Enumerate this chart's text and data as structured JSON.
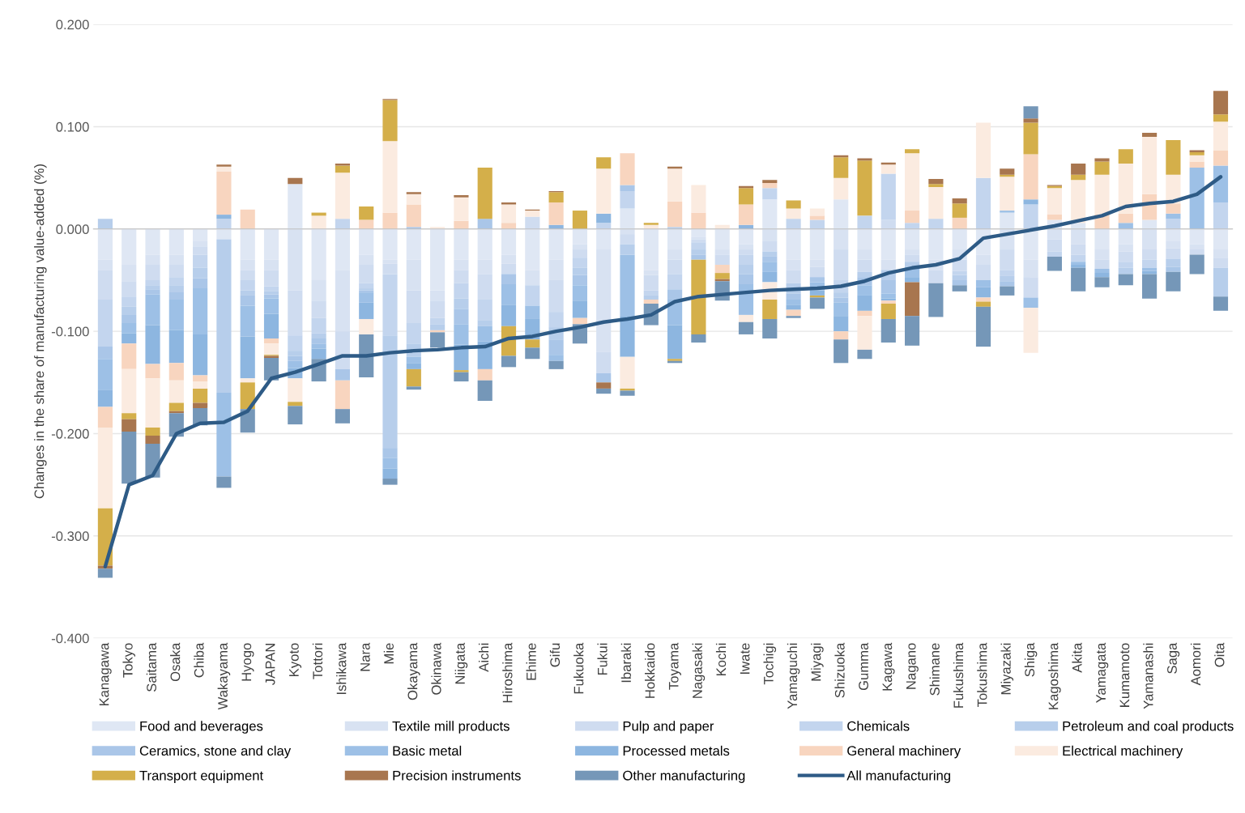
{
  "chart_data": {
    "type": "bar",
    "stacked": true,
    "ylabel": "Changes in the share of manufacturing value-added (%)",
    "categories": [
      "Kanagawa",
      "Tokyo",
      "Saitama",
      "Osaka",
      "Chiba",
      "Wakayama",
      "Hyogo",
      "JAPAN",
      "Kyoto",
      "Tottori",
      "Ishikawa",
      "Nara",
      "Mie",
      "Okayama",
      "Okinawa",
      "Niigata",
      "Aichi",
      "Hiroshima",
      "Ehime",
      "Gifu",
      "Fukuoka",
      "Fukui",
      "Ibaraki",
      "Hokkaido",
      "Toyama",
      "Nagasaki",
      "Kochi",
      "Iwate",
      "Tochigi",
      "Yamaguchi",
      "Miyagi",
      "Shizuoka",
      "Gumma",
      "Kagawa",
      "Nagano",
      "Shimane",
      "Fukushima",
      "Tokushima",
      "Miyazaki",
      "Shiga",
      "Kagoshima",
      "Akita",
      "Yamagata",
      "Kumamoto",
      "Yamanashi",
      "Saga",
      "Aomori",
      "Oita"
    ],
    "ylim": [
      -0.4,
      0.2
    ],
    "yticks": [
      {
        "value": -0.4,
        "label": "-0.400"
      },
      {
        "value": -0.3,
        "label": "-0.300"
      },
      {
        "value": -0.2,
        "label": "-0.200"
      },
      {
        "value": -0.1,
        "label": "-0.100"
      },
      {
        "value": 0,
        "label": "0.000"
      },
      {
        "value": 0.1,
        "label": "0.100"
      },
      {
        "value": 0.2,
        "label": "0.200"
      }
    ],
    "grid": "y",
    "legend": "bottom",
    "series": [
      {
        "name": "Food and beverages",
        "color": "#dfe7f4",
        "values": [
          -0.03,
          -0.035,
          -0.025,
          -0.025,
          -0.012,
          -0.01,
          -0.03,
          -0.03,
          0.044,
          -0.05,
          -0.04,
          -0.025,
          -0.03,
          -0.03,
          -0.06,
          -0.03,
          -0.03,
          -0.025,
          -0.04,
          -0.03,
          -0.015,
          -0.02,
          0.02,
          -0.04,
          -0.02,
          -0.008,
          -0.02,
          -0.015,
          0.029,
          -0.03,
          -0.03,
          0.029,
          -0.02,
          -0.03,
          -0.02,
          -0.03,
          -0.02,
          -0.025,
          0.016,
          -0.03,
          0.009,
          0.006,
          -0.02,
          -0.015,
          0.009,
          -0.012,
          -0.015,
          -0.02
        ]
      },
      {
        "name": "Textile mill products",
        "color": "#d8e2f2",
        "values": [
          -0.01,
          -0.016,
          -0.01,
          -0.01,
          -0.005,
          0,
          -0.01,
          -0.01,
          -0.06,
          -0.02,
          -0.06,
          -0.01,
          -0.004,
          -0.03,
          -0.01,
          -0.01,
          -0.014,
          -0.009,
          -0.015,
          -0.02,
          -0.005,
          -0.1,
          -0.005,
          -0.005,
          -0.01,
          -0.002,
          -0.005,
          -0.005,
          -0.012,
          -0.01,
          -0.007,
          -0.02,
          -0.01,
          -0.01,
          -0.005,
          -0.01,
          -0.01,
          -0.01,
          -0.02,
          -0.017,
          -0.01,
          -0.015,
          -0.01,
          -0.007,
          -0.02,
          -0.007,
          -0.005,
          -0.008
        ]
      },
      {
        "name": "Pulp and paper",
        "color": "#cfdcf0",
        "values": [
          -0.029,
          -0.015,
          -0.015,
          -0.012,
          -0.008,
          0,
          -0.01,
          -0.016,
          -0.044,
          -0.017,
          -0.037,
          -0.018,
          -0.01,
          -0.032,
          -0.017,
          -0.013,
          -0.025,
          -0.01,
          0.012,
          -0.031,
          -0.008,
          -0.021,
          -0.01,
          -0.015,
          -0.014,
          -0.003,
          -0.01,
          -0.005,
          -0.01,
          -0.013,
          -0.01,
          -0.03,
          -0.012,
          0.009,
          -0.007,
          -0.013,
          -0.011,
          -0.015,
          -0.02,
          -0.02,
          -0.012,
          -0.01,
          -0.009,
          -0.01,
          -0.01,
          -0.01,
          -0.005,
          -0.01
        ]
      },
      {
        "name": "Chemicals",
        "color": "#c3d5ee",
        "values": [
          -0.046,
          -0.01,
          -0.005,
          -0.008,
          -0.013,
          0.01,
          -0.01,
          -0.005,
          -0.015,
          -0.015,
          0.01,
          -0.005,
          -0.06,
          -0.02,
          -0.006,
          -0.015,
          -0.02,
          0,
          -0.02,
          -0.015,
          -0.01,
          0.006,
          0.017,
          -0.005,
          -0.015,
          -0.007,
          0,
          -0.01,
          0.011,
          0.01,
          0.009,
          -0.012,
          0.013,
          0.045,
          0.006,
          0.01,
          -0.004,
          0.05,
          -0.006,
          0.024,
          -0.005,
          -0.007,
          0,
          -0.006,
          -0.008,
          0.01,
          0,
          0.026
        ]
      },
      {
        "name": "Petroleum and coal products",
        "color": "#b7ceeb",
        "values": [
          0.01,
          -0.008,
          -0.004,
          -0.007,
          -0.01,
          -0.15,
          -0.005,
          -0.003,
          -0.005,
          -0.005,
          0,
          -0.002,
          -0.11,
          -0.013,
          -0.006,
          -0.01,
          -0.006,
          0,
          0,
          -0.012,
          -0.007,
          0,
          -0.01,
          -0.004,
          0.002,
          -0.005,
          0,
          -0.009,
          -0.005,
          -0.01,
          0,
          -0.005,
          -0.005,
          -0.01,
          -0.005,
          0,
          -0.005,
          0,
          -0.005,
          0,
          0,
          0,
          0,
          -0.006,
          0,
          -0.008,
          0,
          -0.028
        ]
      },
      {
        "name": "Ceramics, stone and clay",
        "color": "#aac6e8",
        "values": [
          -0.012,
          -0.008,
          -0.005,
          -0.007,
          -0.01,
          0,
          -0.01,
          -0.004,
          -0.005,
          -0.005,
          -0.011,
          -0.002,
          -0.01,
          0.002,
          0,
          -0.015,
          0.01,
          -0.01,
          0,
          -0.015,
          -0.01,
          -0.009,
          0.006,
          0,
          -0.01,
          -0.005,
          0,
          -0.01,
          -0.005,
          -0.006,
          -0.005,
          -0.005,
          -0.008,
          -0.013,
          null,
          0,
          -0.005,
          0,
          -0.005,
          0,
          0,
          0,
          0,
          0,
          0,
          -0.005,
          0,
          0
        ]
      },
      {
        "name": "Basic metal",
        "color": "#9dc0e6",
        "values": [
          -0.03,
          -0.01,
          -0.03,
          -0.03,
          -0.045,
          -0.082,
          -0.03,
          -0.015,
          -0.007,
          -0.005,
          0,
          -0.01,
          -0.01,
          -0.006,
          0,
          -0.02,
          -0.015,
          -0.02,
          -0.013,
          -0.006,
          -0.015,
          0,
          -0.06,
          0,
          -0.025,
          0,
          0,
          -0.03,
          -0.01,
          -0.005,
          -0.008,
          -0.013,
          -0.01,
          -0.005,
          -0.01,
          0,
          0,
          -0.007,
          0.002,
          -0.01,
          0,
          -0.003,
          -0.004,
          0.006,
          -0.003,
          0.005,
          0.06,
          0.036
        ]
      },
      {
        "name": "Processed metals",
        "color": "#8db6e0",
        "values": [
          -0.017,
          -0.01,
          -0.038,
          -0.032,
          -0.04,
          0.004,
          -0.041,
          -0.024,
          -0.01,
          -0.01,
          0,
          -0.016,
          -0.01,
          -0.006,
          0,
          -0.025,
          -0.027,
          -0.021,
          -0.02,
          0.004,
          -0.017,
          0.009,
          -0.04,
          0,
          -0.033,
          0,
          0,
          0.004,
          -0.01,
          -0.005,
          -0.005,
          -0.015,
          -0.015,
          -0.002,
          -0.005,
          0,
          0,
          -0.01,
          0,
          0.005,
          0,
          -0.003,
          -0.004,
          0,
          -0.003,
          0,
          0,
          0
        ]
      },
      {
        "name": "General machinery",
        "color": "#f8d5bf",
        "values": [
          -0.02,
          -0.025,
          -0.014,
          -0.017,
          -0.006,
          0.042,
          0.019,
          -0.005,
          0,
          0,
          -0.028,
          0.009,
          0.016,
          0.022,
          -0.002,
          0.008,
          -0.011,
          0.006,
          0,
          0.022,
          -0.006,
          0,
          0.031,
          -0.004,
          0.025,
          0.016,
          -0.008,
          0.02,
          0.005,
          -0.006,
          0.004,
          -0.008,
          -0.005,
          -0.003,
          0.012,
          0,
          0.011,
          -0.004,
          0,
          0.044,
          0.005,
          null,
          0.014,
          0.009,
          0.025,
          0.01,
          0.006,
          0.015
        ]
      },
      {
        "name": "Electrical machinery",
        "color": "#fbebe0",
        "values": [
          -0.079,
          -0.043,
          -0.048,
          -0.022,
          -0.007,
          0.005,
          -0.004,
          -0.011,
          -0.023,
          0.013,
          0.045,
          -0.015,
          0.07,
          0.01,
          0.002,
          0.023,
          0,
          0.018,
          0.006,
          0,
          null,
          0.044,
          -0.031,
          0.004,
          0.032,
          0.027,
          0.004,
          -0.007,
          -0.017,
          0.01,
          0.007,
          0.021,
          -0.033,
          0.009,
          0.056,
          0.031,
          null,
          0.054,
          0.033,
          -0.044,
          0.026,
          0.042,
          0.039,
          0.049,
          0.056,
          0.028,
          0.006,
          0.028
        ]
      },
      {
        "name": "Transport equipment",
        "color": "#d4af4a",
        "values": [
          -0.056,
          -0.006,
          -0.008,
          -0.008,
          -0.014,
          0,
          -0.026,
          -0.001,
          -0.004,
          0.003,
          0.007,
          0.013,
          0.04,
          -0.017,
          0,
          -0.002,
          0.05,
          -0.029,
          -0.008,
          0.01,
          0.018,
          0.011,
          -0.002,
          0.002,
          -0.002,
          -0.073,
          -0.006,
          0.016,
          -0.019,
          0.008,
          -0.002,
          0.02,
          0.054,
          -0.015,
          0.004,
          0.003,
          0.014,
          -0.005,
          0.002,
          0.031,
          0.002,
          0.005,
          0.013,
          0.014,
          0,
          0.034,
          0.003,
          0.007
        ]
      },
      {
        "name": "Precision instruments",
        "color": "#a8764f",
        "values": [
          -0.003,
          -0.012,
          -0.008,
          -0.002,
          -0.005,
          0.002,
          0,
          -0.002,
          0.006,
          0,
          0.002,
          0,
          0.001,
          0.002,
          0,
          0.002,
          0,
          0.002,
          0.001,
          0.001,
          0,
          -0.006,
          0,
          0,
          0.002,
          0,
          -0.002,
          0.002,
          0.003,
          0,
          0,
          0.002,
          0.002,
          0.002,
          -0.033,
          0.005,
          0.005,
          0,
          0.006,
          0.004,
          0.001,
          0.011,
          0.003,
          0,
          0.004,
          0,
          0.002,
          0.023
        ]
      },
      {
        "name": "Other manufacturing",
        "color": "#7597b8",
        "values": [
          -0.009,
          -0.051,
          -0.033,
          -0.023,
          -0.017,
          -0.011,
          -0.023,
          -0.022,
          -0.018,
          -0.022,
          -0.014,
          -0.042,
          -0.006,
          -0.003,
          -0.015,
          -0.009,
          -0.02,
          -0.011,
          -0.011,
          -0.008,
          -0.019,
          -0.005,
          -0.005,
          -0.021,
          -0.002,
          -0.008,
          -0.019,
          -0.012,
          -0.019,
          -0.002,
          -0.011,
          -0.023,
          -0.009,
          -0.023,
          -0.029,
          -0.033,
          -0.006,
          -0.039,
          -0.009,
          0.012,
          -0.014,
          -0.023,
          -0.01,
          -0.011,
          -0.024,
          -0.019,
          -0.019,
          -0.014
        ]
      },
      {
        "name": "All manufacturing",
        "type": "line",
        "color": "#2e5b86",
        "values": [
          -0.33,
          -0.25,
          -0.241,
          -0.2,
          -0.19,
          -0.189,
          -0.178,
          -0.146,
          -0.14,
          -0.132,
          -0.124,
          -0.124,
          -0.121,
          -0.119,
          -0.118,
          -0.116,
          -0.115,
          -0.107,
          -0.105,
          -0.1,
          -0.096,
          -0.091,
          -0.088,
          -0.084,
          -0.071,
          -0.066,
          -0.064,
          -0.062,
          -0.06,
          -0.059,
          -0.058,
          -0.056,
          -0.051,
          -0.043,
          -0.038,
          -0.035,
          -0.029,
          -0.009,
          -0.005,
          -0.001,
          0.003,
          0.008,
          0.013,
          0.022,
          0.025,
          0.027,
          0.034,
          0.051
        ]
      }
    ]
  }
}
